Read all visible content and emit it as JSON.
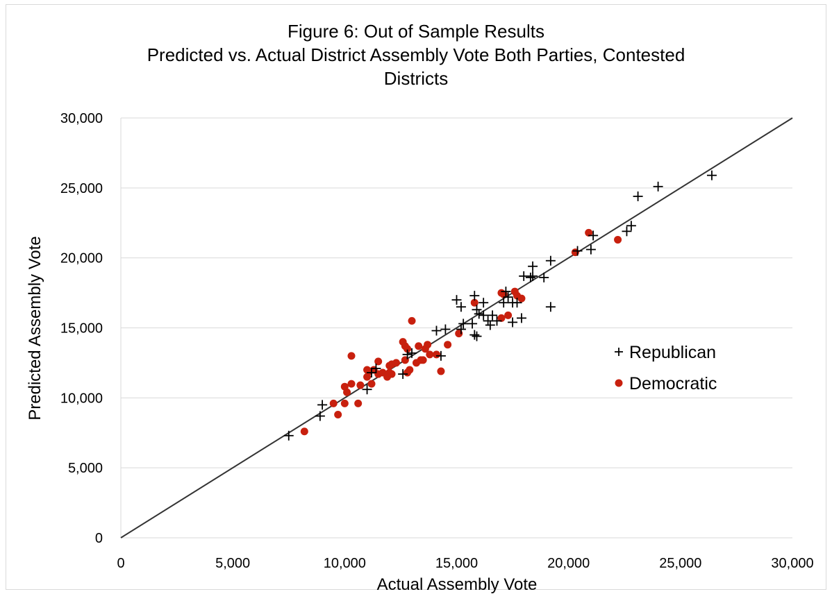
{
  "chart_data": {
    "type": "scatter",
    "title": "Figure 6: Out of Sample Results",
    "subtitle_lines": [
      "Predicted vs. Actual District Assembly Vote Both Parties, Contested",
      "Districts"
    ],
    "xlabel": "Actual Assembly Vote",
    "ylabel": "Predicted Assembly Vote",
    "xlim": [
      0,
      30000
    ],
    "ylim": [
      0,
      30000
    ],
    "x_ticks": [
      "0",
      "5,000",
      "10,000",
      "15,000",
      "20,000",
      "25,000",
      "30,000"
    ],
    "y_ticks": [
      "0",
      "5,000",
      "10,000",
      "15,000",
      "20,000",
      "25,000",
      "30,000"
    ],
    "grid": "horizontal",
    "reference_line": {
      "from": [
        0,
        0
      ],
      "to": [
        30000,
        30000
      ]
    },
    "legend_position": "right",
    "series": [
      {
        "name": "Republican",
        "marker": "+",
        "color": "#000000",
        "points": [
          [
            7500,
            7300
          ],
          [
            8900,
            8700
          ],
          [
            9000,
            9500
          ],
          [
            11000,
            10600
          ],
          [
            11200,
            11800
          ],
          [
            11400,
            12100
          ],
          [
            12600,
            11700
          ],
          [
            12800,
            13100
          ],
          [
            13000,
            13200
          ],
          [
            14100,
            14800
          ],
          [
            14300,
            13000
          ],
          [
            14500,
            14900
          ],
          [
            15000,
            17000
          ],
          [
            15200,
            16500
          ],
          [
            15300,
            15300
          ],
          [
            15200,
            14900
          ],
          [
            15700,
            15300
          ],
          [
            15800,
            14500
          ],
          [
            15900,
            14400
          ],
          [
            15800,
            17300
          ],
          [
            15900,
            16300
          ],
          [
            16000,
            16000
          ],
          [
            16200,
            16800
          ],
          [
            16200,
            15900
          ],
          [
            16400,
            15500
          ],
          [
            16500,
            15200
          ],
          [
            16600,
            15900
          ],
          [
            16800,
            15500
          ],
          [
            17100,
            16800
          ],
          [
            17200,
            17600
          ],
          [
            17300,
            17200
          ],
          [
            17500,
            16800
          ],
          [
            17500,
            15400
          ],
          [
            17700,
            16800
          ],
          [
            17900,
            15700
          ],
          [
            18000,
            18700
          ],
          [
            18300,
            18600
          ],
          [
            18400,
            19400
          ],
          [
            18400,
            18700
          ],
          [
            18900,
            18600
          ],
          [
            19200,
            19800
          ],
          [
            19200,
            16500
          ],
          [
            20400,
            20500
          ],
          [
            21000,
            20600
          ],
          [
            21100,
            21600
          ],
          [
            22600,
            21900
          ],
          [
            22800,
            22300
          ],
          [
            23100,
            24400
          ],
          [
            24000,
            25100
          ],
          [
            26400,
            25900
          ]
        ]
      },
      {
        "name": "Democratic",
        "marker": "dot",
        "color": "#c8200e",
        "points": [
          [
            8200,
            7600
          ],
          [
            9500,
            9600
          ],
          [
            9700,
            8800
          ],
          [
            10000,
            9600
          ],
          [
            10000,
            10800
          ],
          [
            10100,
            10400
          ],
          [
            10300,
            11000
          ],
          [
            10300,
            13000
          ],
          [
            10600,
            9600
          ],
          [
            10700,
            10900
          ],
          [
            11000,
            11500
          ],
          [
            11000,
            12000
          ],
          [
            11100,
            11900
          ],
          [
            11200,
            11000
          ],
          [
            11300,
            12000
          ],
          [
            11500,
            12600
          ],
          [
            11500,
            11700
          ],
          [
            11700,
            11800
          ],
          [
            11900,
            11500
          ],
          [
            12000,
            11800
          ],
          [
            12000,
            12300
          ],
          [
            12100,
            12400
          ],
          [
            12100,
            11700
          ],
          [
            12300,
            12500
          ],
          [
            12600,
            14000
          ],
          [
            12700,
            13700
          ],
          [
            12700,
            12700
          ],
          [
            12800,
            13500
          ],
          [
            12800,
            11800
          ],
          [
            12900,
            12000
          ],
          [
            13000,
            15500
          ],
          [
            13200,
            12500
          ],
          [
            13300,
            13700
          ],
          [
            13400,
            12700
          ],
          [
            13500,
            12700
          ],
          [
            13600,
            13500
          ],
          [
            13700,
            13800
          ],
          [
            13800,
            13100
          ],
          [
            14100,
            13100
          ],
          [
            14300,
            11900
          ],
          [
            14600,
            13800
          ],
          [
            15100,
            14600
          ],
          [
            15800,
            16800
          ],
          [
            17000,
            17500
          ],
          [
            17000,
            15700
          ],
          [
            17100,
            17400
          ],
          [
            17300,
            15900
          ],
          [
            17600,
            17600
          ],
          [
            17700,
            17300
          ],
          [
            17900,
            17100
          ],
          [
            20300,
            20400
          ],
          [
            20900,
            21800
          ],
          [
            22200,
            21300
          ]
        ]
      }
    ]
  }
}
